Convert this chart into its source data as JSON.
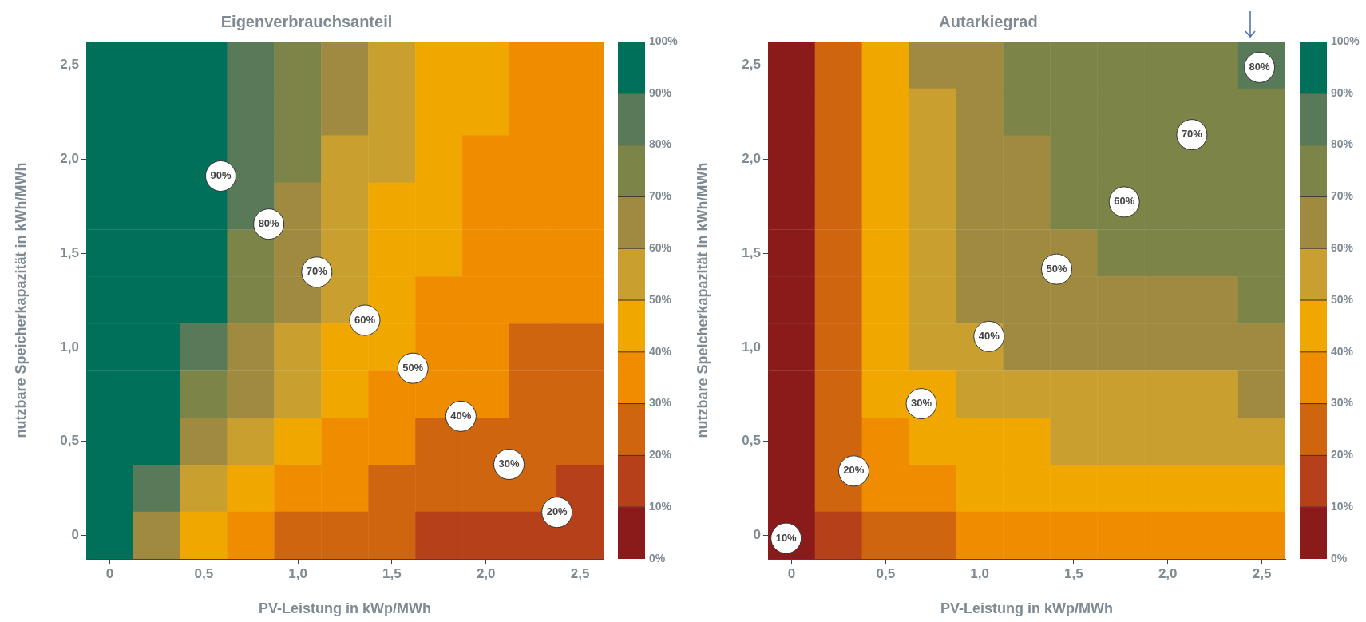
{
  "chart_data": [
    {
      "type": "heatmap",
      "title": "Eigenverbrauchsanteil",
      "xlabel": "PV-Leistung in kWp/MWh",
      "ylabel": "nutzbare Speicherkapazität in kWh/MWh",
      "categories": [
        "0",
        null,
        "0,5",
        null,
        "1,0",
        null,
        "1,5",
        null,
        "2,0",
        null,
        "2,5"
      ],
      "y_categories": [
        "2,5",
        null,
        "2,0",
        null,
        "1,5",
        null,
        "1,0",
        null,
        "0,5",
        null,
        "0"
      ],
      "cells": [
        [
          95,
          95,
          95,
          85,
          75,
          65,
          55,
          45,
          45,
          35,
          35
        ],
        [
          95,
          95,
          95,
          85,
          75,
          65,
          55,
          45,
          45,
          35,
          35
        ],
        [
          95,
          95,
          95,
          85,
          75,
          55,
          55,
          45,
          35,
          35,
          35
        ],
        [
          95,
          95,
          95,
          85,
          65,
          55,
          45,
          45,
          35,
          35,
          35
        ],
        [
          95,
          95,
          95,
          75,
          65,
          55,
          45,
          45,
          35,
          35,
          35
        ],
        [
          95,
          95,
          95,
          75,
          65,
          55,
          45,
          35,
          35,
          35,
          35
        ],
        [
          95,
          95,
          85,
          65,
          55,
          45,
          45,
          35,
          35,
          25,
          25
        ],
        [
          95,
          95,
          75,
          65,
          55,
          45,
          35,
          35,
          35,
          25,
          25
        ],
        [
          95,
          95,
          65,
          55,
          45,
          35,
          35,
          25,
          25,
          25,
          25
        ],
        [
          95,
          85,
          55,
          45,
          35,
          35,
          25,
          25,
          25,
          25,
          15
        ],
        [
          95,
          65,
          45,
          35,
          25,
          25,
          25,
          15,
          15,
          15,
          15
        ]
      ],
      "clim": [
        0,
        100
      ],
      "cticks": [
        {
          "value": 0,
          "label": "0%"
        },
        {
          "value": 10,
          "label": "10%"
        },
        {
          "value": 20,
          "label": "20%"
        },
        {
          "value": 30,
          "label": "30%"
        },
        {
          "value": 40,
          "label": "40%"
        },
        {
          "value": 50,
          "label": "50%"
        },
        {
          "value": 60,
          "label": "60%"
        },
        {
          "value": 70,
          "label": "70%"
        },
        {
          "value": 80,
          "label": "80%"
        },
        {
          "value": 90,
          "label": "90%"
        },
        {
          "value": 100,
          "label": "100%"
        }
      ],
      "colors": [
        "#8b1a1a",
        "#b5401a",
        "#d0650f",
        "#f08c00",
        "#f0a800",
        "#c9a030",
        "#a08a40",
        "#7d8448",
        "#587a58",
        "#00705a"
      ],
      "annotations": [
        "90%",
        "80%",
        "70%",
        "60%",
        "50%",
        "40%",
        "30%",
        "20%"
      ]
    },
    {
      "type": "heatmap",
      "title": "Autarkiegrad",
      "xlabel": "PV-Leistung in kWp/MWh",
      "ylabel": "nutzbare Speicherkapazität in kWh/MWh",
      "categories": [
        "0",
        null,
        "0,5",
        null,
        "1,0",
        null,
        "1,5",
        null,
        "2,0",
        null,
        "2,5"
      ],
      "y_categories": [
        "2,5",
        null,
        "2,0",
        null,
        "1,5",
        null,
        "1,0",
        null,
        "0,5",
        null,
        "0"
      ],
      "cells": [
        [
          5,
          25,
          45,
          65,
          65,
          75,
          75,
          75,
          75,
          75,
          85
        ],
        [
          5,
          25,
          45,
          55,
          65,
          75,
          75,
          75,
          75,
          75,
          75
        ],
        [
          5,
          25,
          45,
          55,
          65,
          65,
          75,
          75,
          75,
          75,
          75
        ],
        [
          5,
          25,
          45,
          55,
          65,
          65,
          75,
          75,
          75,
          75,
          75
        ],
        [
          5,
          25,
          45,
          55,
          65,
          65,
          65,
          75,
          75,
          75,
          75
        ],
        [
          5,
          25,
          45,
          55,
          65,
          65,
          65,
          65,
          65,
          65,
          75
        ],
        [
          5,
          25,
          45,
          55,
          55,
          65,
          65,
          65,
          65,
          65,
          65
        ],
        [
          5,
          25,
          45,
          45,
          55,
          55,
          55,
          55,
          55,
          55,
          65
        ],
        [
          5,
          25,
          35,
          45,
          45,
          45,
          55,
          55,
          55,
          55,
          55
        ],
        [
          5,
          25,
          35,
          35,
          45,
          45,
          45,
          45,
          45,
          45,
          45
        ],
        [
          5,
          15,
          25,
          25,
          35,
          35,
          35,
          35,
          35,
          35,
          35
        ]
      ],
      "clim": [
        0,
        100
      ],
      "cticks": [
        {
          "value": 0,
          "label": "0%"
        },
        {
          "value": 10,
          "label": "10%"
        },
        {
          "value": 20,
          "label": "20%"
        },
        {
          "value": 30,
          "label": "30%"
        },
        {
          "value": 40,
          "label": "40%"
        },
        {
          "value": 50,
          "label": "50%"
        },
        {
          "value": 60,
          "label": "60%"
        },
        {
          "value": 70,
          "label": "70%"
        },
        {
          "value": 80,
          "label": "80%"
        },
        {
          "value": 90,
          "label": "90%"
        },
        {
          "value": 100,
          "label": "100%"
        }
      ],
      "colors": [
        "#8b1a1a",
        "#b5401a",
        "#d0650f",
        "#f08c00",
        "#f0a800",
        "#c9a030",
        "#a08a40",
        "#7d8448",
        "#587a58",
        "#00705a"
      ],
      "annotations": [
        "10%",
        "20%",
        "30%",
        "40%",
        "50%",
        "60%",
        "70%",
        "80%"
      ]
    }
  ]
}
